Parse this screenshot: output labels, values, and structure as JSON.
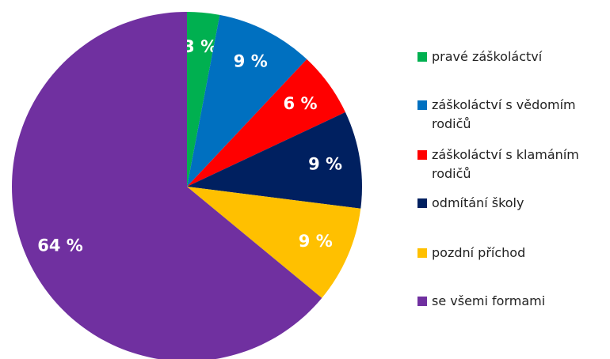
{
  "chart_data": {
    "type": "pie",
    "categories": [
      "pravé záškoláctví",
      "záškoláctví s vědomím rodičů",
      "záškoláctví s klamáním rodičů",
      "odmítání školy",
      "pozdní příchod",
      "se všemi formami"
    ],
    "values": [
      3,
      9,
      6,
      9,
      9,
      64
    ],
    "value_labels": [
      "3 %",
      "9 %",
      "6 %",
      "9 %",
      "9 %",
      "64 %"
    ],
    "colors": [
      "#00b050",
      "#0070c0",
      "#ff0000",
      "#002060",
      "#ffc000",
      "#7030a0"
    ],
    "legend": "right"
  }
}
